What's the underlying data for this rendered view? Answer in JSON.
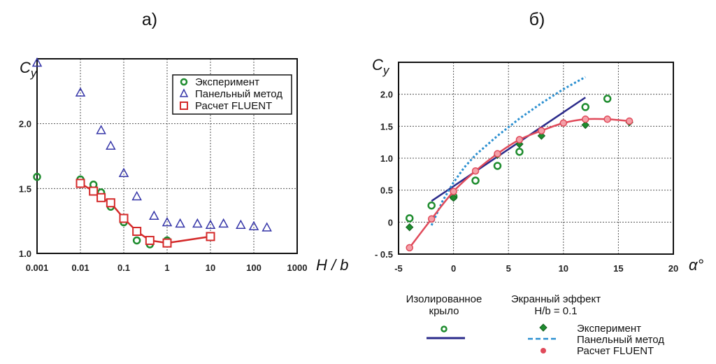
{
  "colors": {
    "experiment": "#1e8c2e",
    "panel": "#3535a8",
    "fluent": "#d42a2a",
    "isolated_line": "#2a2a8a",
    "panel_dotted": "#2a8fd0",
    "fluent_dot": "#e04a5a"
  },
  "chart_data": [
    {
      "id": "a",
      "type": "scatter",
      "title": "а)",
      "xlabel": "H / b",
      "ylabel": "C_y",
      "ylabel_main": "C",
      "ylabel_sub": "y",
      "xscale": "log",
      "xlim": [
        0.001,
        1000
      ],
      "ylim": [
        1.0,
        2.5
      ],
      "grid": true,
      "xticks": [
        0.001,
        0.01,
        0.1,
        1,
        10,
        100,
        1000
      ],
      "xtick_labels": [
        "0.001",
        "0.01",
        "0.1",
        "1",
        "10",
        "100",
        "1000"
      ],
      "yticks": [
        1.0,
        1.5,
        2.0
      ],
      "ytick_labels": [
        "1.0",
        "1.5",
        "2.0"
      ],
      "legend_position": "top-right",
      "series": [
        {
          "name": "Эксперимент",
          "marker": "circle",
          "color_key": "experiment",
          "line": false,
          "x": [
            0.001,
            0.01,
            0.02,
            0.03,
            0.05,
            0.1,
            0.2,
            0.4,
            1
          ],
          "y": [
            1.59,
            1.57,
            1.53,
            1.47,
            1.36,
            1.24,
            1.1,
            1.07,
            1.1
          ]
        },
        {
          "name": "Панельный метод",
          "marker": "triangle",
          "color_key": "panel",
          "line": false,
          "x": [
            0.001,
            0.01,
            0.03,
            0.05,
            0.1,
            0.2,
            0.5,
            1,
            2,
            5,
            10,
            20,
            50,
            100,
            200
          ],
          "y": [
            2.47,
            2.24,
            1.95,
            1.83,
            1.62,
            1.44,
            1.29,
            1.24,
            1.23,
            1.23,
            1.22,
            1.23,
            1.22,
            1.21,
            1.2
          ]
        },
        {
          "name": "Расчет FLUENT",
          "marker": "square",
          "color_key": "fluent",
          "line": true,
          "x": [
            0.01,
            0.02,
            0.03,
            0.05,
            0.1,
            0.2,
            0.4,
            1,
            10
          ],
          "y": [
            1.54,
            1.48,
            1.43,
            1.39,
            1.27,
            1.17,
            1.1,
            1.08,
            1.13
          ]
        }
      ]
    },
    {
      "id": "b",
      "type": "line",
      "title": "б)",
      "xlabel": "α°",
      "ylabel": "C_y",
      "ylabel_main": "C",
      "ylabel_sub": "y",
      "xlim": [
        -5,
        20
      ],
      "ylim": [
        -0.5,
        2.5
      ],
      "grid": true,
      "xticks": [
        -5,
        0,
        5,
        10,
        15,
        20
      ],
      "xtick_labels": [
        "-5",
        "0",
        "5",
        "10",
        "15",
        "20"
      ],
      "yticks": [
        -0.5,
        0,
        0.5,
        1.0,
        1.5,
        2.0
      ],
      "ytick_labels": [
        "- 0.5",
        "0",
        "0.5",
        "1.0",
        "1.5",
        "2.0"
      ],
      "legend_position": "bottom",
      "legend_groups": [
        "Изолированное",
        "крыло",
        "Экранный эффект",
        "H/b = 0.1"
      ],
      "legend_labels": [
        "Эксперимент",
        "Панельный метод",
        "Расчет FLUENT"
      ],
      "series": [
        {
          "name": "Изолированное крыло — Эксперимент",
          "marker": "circle",
          "color_key": "experiment",
          "line": false,
          "x": [
            -4,
            -2,
            0,
            2,
            4,
            6,
            12,
            14
          ],
          "y": [
            0.06,
            0.26,
            0.4,
            0.65,
            0.88,
            1.1,
            1.8,
            1.93
          ]
        },
        {
          "name": "Изолированное крыло — Панельный метод",
          "marker": "none",
          "color_key": "isolated_line",
          "line": "solid",
          "x": [
            -2,
            12
          ],
          "y": [
            0.33,
            1.95
          ]
        },
        {
          "name": "Экранный эффект — Эксперимент",
          "marker": "diamond",
          "color_key": "experiment",
          "line": false,
          "x": [
            -4,
            0,
            4,
            6,
            8,
            10,
            12,
            16
          ],
          "y": [
            -0.08,
            0.38,
            1.05,
            1.22,
            1.35,
            1.55,
            1.52,
            1.56
          ]
        },
        {
          "name": "Экранный эффект — Панельный метод",
          "marker": "none",
          "color_key": "panel_dotted",
          "line": "dotted",
          "x": [
            -2,
            -1,
            0,
            1,
            2,
            4,
            6,
            8,
            10,
            12
          ],
          "y": [
            -0.05,
            0.33,
            0.62,
            0.86,
            1.05,
            1.35,
            1.62,
            1.86,
            2.08,
            2.27
          ]
        },
        {
          "name": "Экранный эффект — Расчет FLUENT",
          "marker": "dot",
          "color_key": "fluent_dot",
          "line": "smooth",
          "x": [
            -4,
            -2,
            0,
            2,
            4,
            6,
            8,
            10,
            12,
            14,
            16
          ],
          "y": [
            -0.4,
            0.05,
            0.48,
            0.8,
            1.07,
            1.29,
            1.43,
            1.55,
            1.61,
            1.61,
            1.58
          ]
        }
      ]
    }
  ]
}
